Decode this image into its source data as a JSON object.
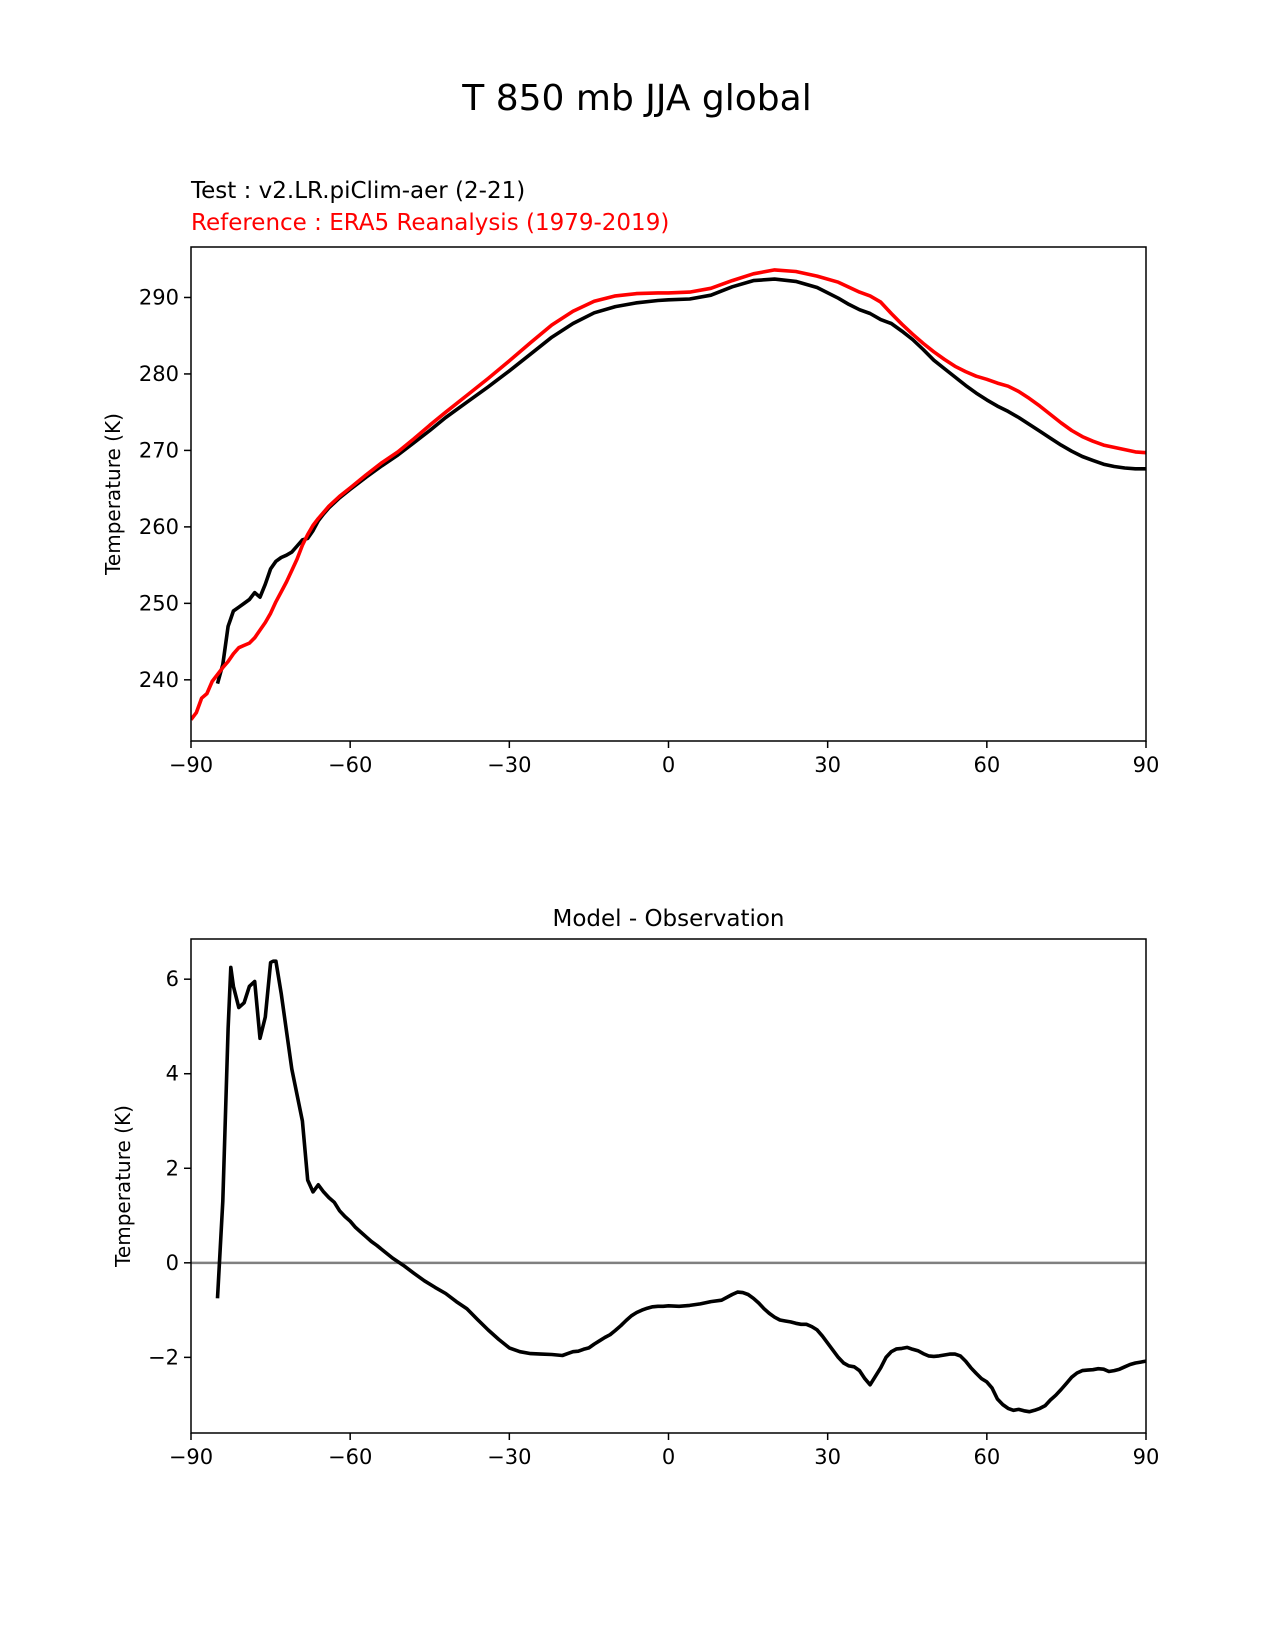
{
  "figure": {
    "title": "T 850 mb JJA global"
  },
  "chart_data": [
    {
      "type": "line",
      "test_label": "Test : v2.LR.piClim-aer (2-21)",
      "reference_label": "Reference : ERA5 Reanalysis (1979-2019)",
      "title": "",
      "xlabel": "",
      "ylabel": "Temperature (K)",
      "xlim": [
        -90,
        90
      ],
      "ylim": [
        232,
        296.6
      ],
      "xticks": [
        -90,
        -60,
        -30,
        0,
        30,
        60,
        90
      ],
      "xtick_labels": [
        "−90",
        "−60",
        "−30",
        "0",
        "30",
        "60",
        "90"
      ],
      "yticks": [
        240,
        250,
        260,
        270,
        280,
        290
      ],
      "ytick_labels": [
        "240",
        "250",
        "260",
        "270",
        "280",
        "290"
      ],
      "grid": false,
      "series": [
        {
          "role": "test",
          "color": "#000000",
          "x": [
            -85,
            -84,
            -83,
            -82.5,
            -82,
            -81,
            -80,
            -79,
            -78,
            -77,
            -76,
            -75,
            -74,
            -73,
            -72,
            -71,
            -70,
            -69,
            -68,
            -67,
            -66,
            -65,
            -64,
            -62,
            -60,
            -57,
            -54,
            -51,
            -48,
            -45,
            -42,
            -38,
            -34,
            -30,
            -26,
            -22,
            -18,
            -14,
            -10,
            -6,
            -2,
            0,
            4,
            8,
            12,
            16,
            20,
            24,
            28,
            32,
            34,
            36,
            38,
            40,
            42,
            44,
            46,
            48,
            50,
            52,
            54,
            56,
            58,
            60,
            62,
            64,
            66,
            68,
            70,
            72,
            74,
            76,
            78,
            80,
            82,
            84,
            86,
            88,
            90
          ],
          "y": [
            239.5,
            242,
            247,
            248,
            249,
            249.5,
            250,
            250.5,
            251.4,
            250.8,
            252.5,
            254.5,
            255.5,
            256,
            256.3,
            256.7,
            257.5,
            258.3,
            258.5,
            259.5,
            260.8,
            261.7,
            262.5,
            263.8,
            264.9,
            266.5,
            268,
            269.4,
            271,
            272.6,
            274.3,
            276.3,
            278.3,
            280.4,
            282.6,
            284.8,
            286.6,
            288,
            288.8,
            289.3,
            289.6,
            289.7,
            289.8,
            290.3,
            291.4,
            292.2,
            292.4,
            292.1,
            291.3,
            289.9,
            289.1,
            288.4,
            287.9,
            287.1,
            286.6,
            285.6,
            284.5,
            283.2,
            281.8,
            280.7,
            279.6,
            278.5,
            277.5,
            276.6,
            275.8,
            275.1,
            274.3,
            273.4,
            272.5,
            271.6,
            270.7,
            269.9,
            269.2,
            268.7,
            268.2,
            267.9,
            267.7,
            267.6,
            267.6
          ]
        },
        {
          "role": "reference",
          "color": "#ff0000",
          "x": [
            -90,
            -89,
            -88,
            -87,
            -86,
            -85,
            -84,
            -83,
            -82,
            -81,
            -80,
            -79,
            -78,
            -77,
            -76,
            -75,
            -74,
            -73,
            -72,
            -71,
            -70,
            -69,
            -68,
            -67,
            -66,
            -64,
            -62,
            -60,
            -57,
            -54,
            -51,
            -48,
            -45,
            -42,
            -38,
            -34,
            -30,
            -26,
            -22,
            -18,
            -14,
            -10,
            -6,
            -2,
            0,
            4,
            8,
            12,
            16,
            20,
            24,
            28,
            32,
            36,
            38,
            40,
            42,
            44,
            46,
            48,
            50,
            52,
            54,
            56,
            58,
            60,
            62,
            64,
            66,
            68,
            70,
            72,
            74,
            76,
            78,
            80,
            82,
            84,
            86,
            88,
            90
          ],
          "y": [
            234.8,
            235.7,
            237.6,
            238.2,
            239.8,
            240.7,
            241.6,
            242.4,
            243.4,
            244.2,
            244.5,
            244.8,
            245.5,
            246.5,
            247.5,
            248.7,
            250.2,
            251.5,
            252.8,
            254.3,
            255.8,
            257.6,
            259,
            260.2,
            261.1,
            262.7,
            264,
            265.1,
            266.8,
            268.4,
            269.8,
            271.5,
            273.3,
            275,
            277.2,
            279.4,
            281.7,
            284.1,
            286.4,
            288.2,
            289.5,
            290.2,
            290.5,
            290.6,
            290.6,
            290.7,
            291.2,
            292.2,
            293.1,
            293.6,
            293.4,
            292.8,
            292,
            290.7,
            290.2,
            289.4,
            287.9,
            286.5,
            285.2,
            284,
            282.9,
            281.9,
            281,
            280.3,
            279.7,
            279.3,
            278.8,
            278.4,
            277.7,
            276.8,
            275.8,
            274.7,
            273.6,
            272.6,
            271.8,
            271.2,
            270.7,
            270.4,
            270.1,
            269.8,
            269.7
          ]
        }
      ]
    },
    {
      "type": "line",
      "title": "Model - Observation",
      "xlabel": "",
      "ylabel": "Temperature (K)",
      "xlim": [
        -90,
        90
      ],
      "ylim": [
        -3.6,
        6.85
      ],
      "xticks": [
        -90,
        -60,
        -30,
        0,
        30,
        60,
        90
      ],
      "xtick_labels": [
        "−90",
        "−60",
        "−30",
        "0",
        "30",
        "60",
        "90"
      ],
      "yticks": [
        -2,
        0,
        2,
        4,
        6
      ],
      "ytick_labels": [
        "−2",
        "0",
        "2",
        "4",
        "6"
      ],
      "grid": false,
      "zero_line_color": "#808080",
      "series": [
        {
          "role": "difference",
          "color": "#000000",
          "x": [
            -85,
            -84,
            -83,
            -82.5,
            -82,
            -81,
            -80,
            -79,
            -78,
            -77,
            -76,
            -75,
            -74.5,
            -74,
            -73,
            -72,
            -71,
            -70,
            -69,
            -68,
            -67,
            -66,
            -65,
            -64,
            -63,
            -62,
            -61,
            -60,
            -59,
            -58,
            -57,
            -56,
            -55,
            -54,
            -52,
            -50,
            -48,
            -46,
            -44,
            -42,
            -40,
            -38,
            -36,
            -34,
            -32,
            -30,
            -28,
            -26,
            -24,
            -22,
            -20,
            -19,
            -18,
            -17,
            -16,
            -15,
            -14,
            -13,
            -12,
            -11,
            -10,
            -9,
            -8,
            -7,
            -6,
            -5,
            -4,
            -3,
            -2,
            -1,
            0,
            2,
            4,
            6,
            8,
            10,
            12,
            13,
            14,
            15,
            16,
            17,
            18,
            19,
            20,
            21,
            22,
            23,
            24,
            25,
            26,
            27,
            28,
            29,
            30,
            31,
            32,
            33,
            34,
            35,
            36,
            37,
            38,
            39,
            40,
            41,
            42,
            43,
            44,
            45,
            46,
            47,
            48,
            49,
            50,
            51,
            52,
            53,
            54,
            55,
            56,
            57,
            58,
            59,
            60,
            61,
            62,
            63,
            64,
            65,
            66,
            67,
            68,
            69,
            70,
            71,
            72,
            73,
            74,
            75,
            76,
            77,
            78,
            79,
            80,
            81,
            82,
            83,
            84,
            85,
            86,
            87,
            88,
            89,
            90
          ],
          "y": [
            -0.75,
            1.3,
            4.95,
            6.25,
            5.85,
            5.4,
            5.5,
            5.85,
            5.95,
            4.75,
            5.2,
            6.35,
            6.38,
            6.38,
            5.7,
            4.9,
            4.1,
            3.55,
            3,
            1.75,
            1.5,
            1.65,
            1.5,
            1.38,
            1.28,
            1.1,
            0.98,
            0.88,
            0.75,
            0.65,
            0.55,
            0.45,
            0.37,
            0.28,
            0.1,
            -0.05,
            -0.22,
            -0.38,
            -0.52,
            -0.65,
            -0.82,
            -0.97,
            -1.2,
            -1.42,
            -1.62,
            -1.8,
            -1.88,
            -1.92,
            -1.93,
            -1.94,
            -1.96,
            -1.92,
            -1.88,
            -1.87,
            -1.83,
            -1.8,
            -1.72,
            -1.65,
            -1.58,
            -1.52,
            -1.43,
            -1.33,
            -1.22,
            -1.12,
            -1.05,
            -1,
            -0.96,
            -0.93,
            -0.92,
            -0.92,
            -0.91,
            -0.92,
            -0.9,
            -0.87,
            -0.82,
            -0.79,
            -0.67,
            -0.62,
            -0.63,
            -0.67,
            -0.75,
            -0.85,
            -0.97,
            -1.07,
            -1.15,
            -1.21,
            -1.23,
            -1.25,
            -1.28,
            -1.3,
            -1.3,
            -1.35,
            -1.42,
            -1.55,
            -1.7,
            -1.85,
            -2,
            -2.12,
            -2.18,
            -2.2,
            -2.28,
            -2.45,
            -2.58,
            -2.4,
            -2.22,
            -2,
            -1.88,
            -1.82,
            -1.81,
            -1.79,
            -1.83,
            -1.86,
            -1.92,
            -1.97,
            -1.98,
            -1.97,
            -1.95,
            -1.93,
            -1.93,
            -1.97,
            -2.08,
            -2.22,
            -2.34,
            -2.45,
            -2.52,
            -2.65,
            -2.88,
            -3,
            -3.08,
            -3.12,
            -3.1,
            -3.13,
            -3.15,
            -3.12,
            -3.08,
            -3.02,
            -2.9,
            -2.8,
            -2.68,
            -2.55,
            -2.42,
            -2.33,
            -2.28,
            -2.27,
            -2.26,
            -2.24,
            -2.25,
            -2.3,
            -2.28,
            -2.25,
            -2.2,
            -2.15,
            -2.12,
            -2.1,
            -2.08
          ]
        }
      ]
    }
  ]
}
